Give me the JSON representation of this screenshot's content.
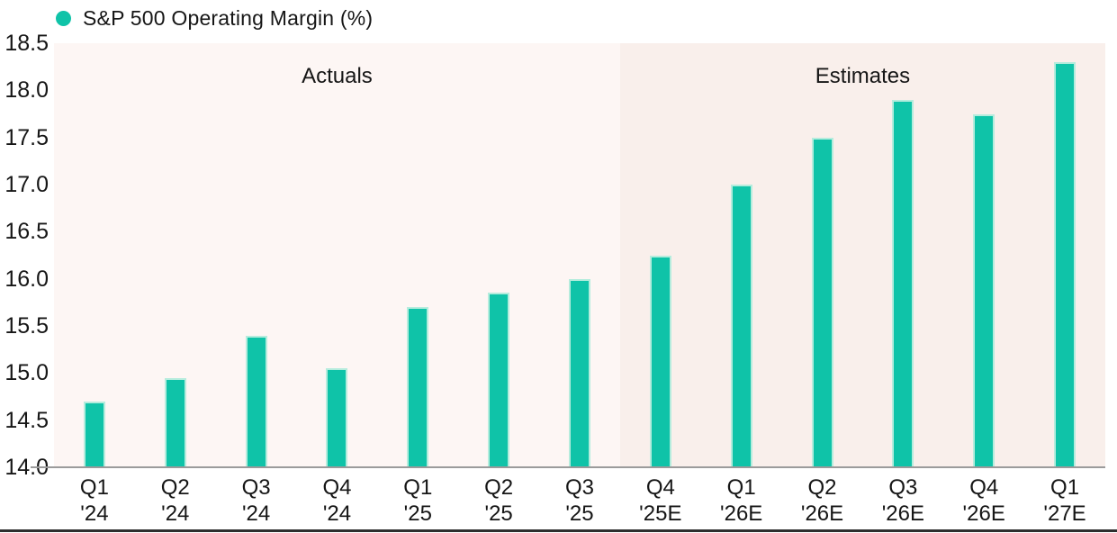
{
  "chart_data": {
    "type": "bar",
    "title": "S&P 500 Operating Margin (%)",
    "legend": {
      "label": "S&P 500 Operating Margin (%)",
      "position": "top-left",
      "marker": "circle"
    },
    "categories": [
      "Q1 '24",
      "Q2 '24",
      "Q3 '24",
      "Q4 '24",
      "Q1 '25",
      "Q2 '25",
      "Q3 '25",
      "Q4 '25E",
      "Q1 '26E",
      "Q2 '26E",
      "Q3 '26E",
      "Q4 '26E",
      "Q1 '27E"
    ],
    "values": [
      14.7,
      14.95,
      15.4,
      15.05,
      15.7,
      15.85,
      16.0,
      16.25,
      17.0,
      17.5,
      17.9,
      17.75,
      18.3
    ],
    "xlabel": "",
    "ylabel": "",
    "ylim": [
      14.0,
      18.5
    ],
    "y_ticks": [
      "18.5",
      "18.0",
      "17.5",
      "17.0",
      "16.5",
      "16.0",
      "15.5",
      "15.0",
      "14.5",
      "14.0"
    ],
    "grid": false,
    "annotations": {
      "actuals": "Actuals",
      "estimates": "Estimates"
    },
    "actuals_count": 7,
    "colors": {
      "bar": "#0fc3a8",
      "bar_edge": "#b5ecdd",
      "actuals_bg": "#fdf6f4",
      "estimates_bg": "#f9efeb",
      "axis_line": "#9b9b9b",
      "text": "#161616",
      "bottom_rule": "#2e2e2e"
    }
  }
}
